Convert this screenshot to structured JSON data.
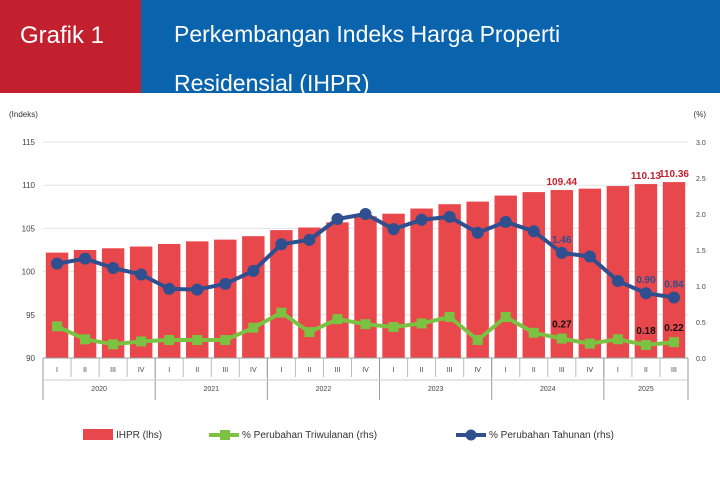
{
  "header": {
    "label": "Grafik 1",
    "title_line1": "Perkembangan Indeks Harga Properti",
    "title_line2": "Residensial (IHPR)"
  },
  "chart_data": {
    "type": "bar+line",
    "title": "Perkembangan Indeks Harga Properti Residensial (IHPR)",
    "left_axis_label": "(Indeks)",
    "right_axis_label": "(%)",
    "ylim_left": [
      90,
      115
    ],
    "yticks_left": [
      "90",
      "95",
      "100",
      "105",
      "110",
      "115"
    ],
    "ylim_right": [
      0,
      3.0
    ],
    "yticks_right": [
      "0.0",
      "0.5",
      "1.0",
      "1.5",
      "2.0",
      "2.5",
      "3.0"
    ],
    "quarters": [
      "I",
      "II",
      "III",
      "IV",
      "I",
      "II",
      "III",
      "IV",
      "I",
      "II",
      "III",
      "IV",
      "I",
      "II",
      "III",
      "IV",
      "I",
      "II",
      "III",
      "IV",
      "I",
      "II",
      "III"
    ],
    "years": [
      {
        "label": "2020",
        "count": 4
      },
      {
        "label": "2021",
        "count": 4
      },
      {
        "label": "2022",
        "count": 4
      },
      {
        "label": "2023",
        "count": 4
      },
      {
        "label": "2024",
        "count": 4
      },
      {
        "label": "2025",
        "count": 3
      }
    ],
    "series": [
      {
        "name": "IHPR (lhs)",
        "type": "bar",
        "axis": "left",
        "color": "#e8474c",
        "values": [
          102.2,
          102.5,
          102.7,
          102.9,
          103.2,
          103.5,
          103.7,
          104.1,
          104.8,
          105.1,
          105.7,
          106.4,
          106.7,
          107.3,
          107.8,
          108.1,
          108.8,
          109.2,
          109.44,
          109.6,
          109.9,
          110.13,
          110.36
        ]
      },
      {
        "name": "% Perubahan Triwulanan (rhs)",
        "type": "line",
        "axis": "right",
        "color": "#7cc242",
        "values": [
          0.44,
          0.26,
          0.19,
          0.23,
          0.25,
          0.25,
          0.25,
          0.42,
          0.63,
          0.36,
          0.54,
          0.47,
          0.43,
          0.48,
          0.57,
          0.25,
          0.57,
          0.35,
          0.27,
          0.2,
          0.26,
          0.18,
          0.22
        ]
      },
      {
        "name": "% Perubahan Tahunan (rhs)",
        "type": "line",
        "axis": "right",
        "color": "#2f4f8f",
        "values": [
          1.31,
          1.38,
          1.25,
          1.16,
          0.96,
          0.95,
          1.03,
          1.21,
          1.58,
          1.64,
          1.93,
          2.0,
          1.79,
          1.92,
          1.96,
          1.74,
          1.89,
          1.76,
          1.46,
          1.41,
          1.07,
          0.9,
          0.84
        ]
      }
    ],
    "annotations": [
      {
        "series": 0,
        "index": 18,
        "text": "109.44",
        "color": "#c3202f"
      },
      {
        "series": 0,
        "index": 21,
        "text": "110.13",
        "color": "#c3202f"
      },
      {
        "series": 0,
        "index": 22,
        "text": "110.36",
        "color": "#c3202f"
      },
      {
        "series": 2,
        "index": 18,
        "text": "1.46",
        "color": "#2f4f8f"
      },
      {
        "series": 2,
        "index": 21,
        "text": "0.90",
        "color": "#2f4f8f"
      },
      {
        "series": 2,
        "index": 22,
        "text": "0.84",
        "color": "#2f4f8f"
      },
      {
        "series": 1,
        "index": 18,
        "text": "0.27",
        "color": "#111111"
      },
      {
        "series": 1,
        "index": 21,
        "text": "0.18",
        "color": "#111111"
      },
      {
        "series": 1,
        "index": 22,
        "text": "0.22",
        "color": "#111111"
      }
    ],
    "legend_position": "bottom"
  }
}
